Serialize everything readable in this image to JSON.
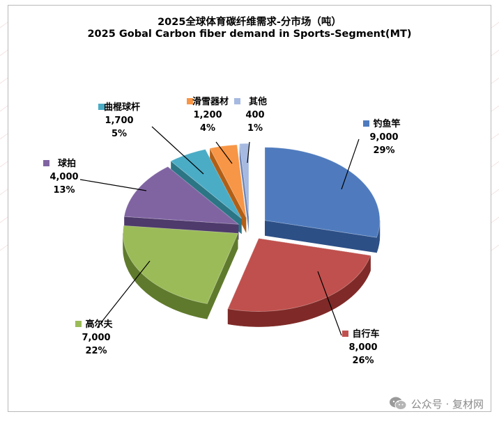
{
  "chart_data": {
    "type": "pie",
    "title": "2025全球体育碳纤维需求-分市场（吨）",
    "subtitle": "2025 Gobal Carbon fiber demand in Sports-Segment(MT)",
    "categories": [
      "钓鱼竿",
      "自行车",
      "高尔夫",
      "球拍",
      "曲棍球杆",
      "滑雪器材",
      "其他"
    ],
    "values": [
      9000,
      8000,
      7000,
      4000,
      1700,
      1200,
      400
    ],
    "value_labels": [
      "9,000",
      "8,000",
      "7,000",
      "4,000",
      "1,700",
      "1,200",
      "400"
    ],
    "percent_labels": [
      "29%",
      "26%",
      "22%",
      "13%",
      "5%",
      "4%",
      "1%"
    ],
    "colors": [
      "#4F7BBE",
      "#C0504D",
      "#9BBB59",
      "#8064A2",
      "#4BACC6",
      "#F79646",
      "#A6B9E0"
    ],
    "side_colors": [
      "#2C4F86",
      "#7F2A28",
      "#5F7A2C",
      "#4E3A6B",
      "#2B7585",
      "#B25F16",
      "#6F86B6"
    ],
    "legend": "inline-labels",
    "style": "3d-exploded"
  },
  "watermark": {
    "text": "公众号 · 复材网",
    "icon": "wechat-icon"
  }
}
